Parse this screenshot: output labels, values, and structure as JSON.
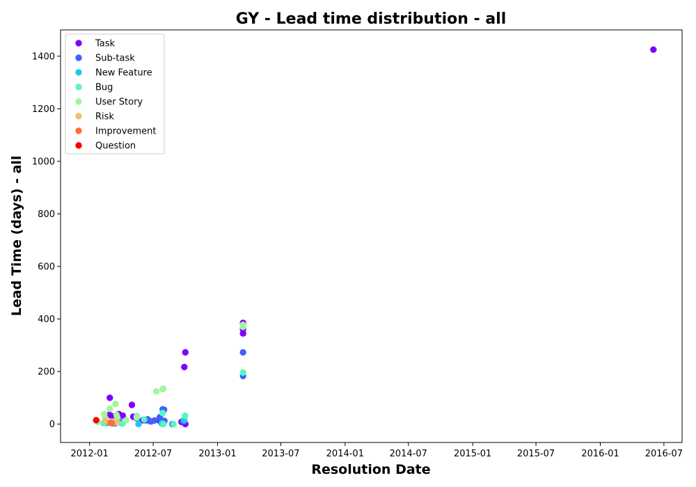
{
  "chart_data": {
    "type": "scatter",
    "title": "GY - Lead time distribution - all",
    "xlabel": "Resolution Date",
    "ylabel": "Lead Time (days) - all",
    "xlim": [
      "2011-10-10",
      "2016-08-22"
    ],
    "ylim": [
      -70,
      1500
    ],
    "x_ticks": [
      "2012-01",
      "2012-07",
      "2013-01",
      "2013-07",
      "2014-01",
      "2014-07",
      "2015-01",
      "2015-07",
      "2016-01",
      "2016-07"
    ],
    "y_ticks": [
      0,
      200,
      400,
      600,
      800,
      1000,
      1200,
      1400
    ],
    "grid": false,
    "legend_position": "upper-left",
    "series": [
      {
        "name": "Task",
        "color": "#8000ff",
        "points": [
          [
            "2012-02-28",
            100
          ],
          [
            "2012-02-27",
            35
          ],
          [
            "2012-03-05",
            30
          ],
          [
            "2012-03-20",
            30
          ],
          [
            "2012-03-25",
            38
          ],
          [
            "2012-04-05",
            32
          ],
          [
            "2012-05-01",
            73
          ],
          [
            "2012-05-05",
            28
          ],
          [
            "2012-06-01",
            15
          ],
          [
            "2012-06-15",
            18
          ],
          [
            "2012-07-20",
            12
          ],
          [
            "2012-09-28",
            217
          ],
          [
            "2012-10-01",
            273
          ],
          [
            "2012-10-01",
            0
          ],
          [
            "2012-09-20",
            8
          ],
          [
            "2013-03-15",
            385
          ],
          [
            "2013-03-15",
            360
          ],
          [
            "2013-03-15",
            345
          ],
          [
            "2016-06-01",
            1425
          ]
        ]
      },
      {
        "name": "Sub-task",
        "color": "#4062fa",
        "points": [
          [
            "2012-03-10",
            5
          ],
          [
            "2012-03-15",
            3
          ],
          [
            "2012-03-28",
            8
          ],
          [
            "2012-05-15",
            22
          ],
          [
            "2012-06-10",
            14
          ],
          [
            "2012-06-15",
            16
          ],
          [
            "2012-06-20",
            12
          ],
          [
            "2012-06-25",
            10
          ],
          [
            "2012-07-05",
            14
          ],
          [
            "2012-07-20",
            26
          ],
          [
            "2012-07-28",
            56
          ],
          [
            "2012-08-01",
            55
          ],
          [
            "2012-08-02",
            12
          ],
          [
            "2012-08-25",
            0
          ],
          [
            "2012-09-25",
            12
          ],
          [
            "2013-03-15",
            273
          ],
          [
            "2013-03-15",
            183
          ]
        ]
      },
      {
        "name": "New Feature",
        "color": "#1ccde5",
        "points": [
          [
            "2012-02-20",
            4
          ],
          [
            "2012-03-08",
            2
          ],
          [
            "2012-04-02",
            3
          ],
          [
            "2012-05-20",
            0
          ],
          [
            "2012-07-25",
            3
          ],
          [
            "2012-09-28",
            14
          ]
        ]
      },
      {
        "name": "Bug",
        "color": "#59f4c8",
        "points": [
          [
            "2012-02-10",
            3
          ],
          [
            "2012-03-10",
            8
          ],
          [
            "2012-04-05",
            2
          ],
          [
            "2012-05-15",
            30
          ],
          [
            "2012-06-05",
            18
          ],
          [
            "2012-07-28",
            42
          ],
          [
            "2012-07-30",
            0
          ],
          [
            "2012-08-28",
            0
          ],
          [
            "2012-09-30",
            32
          ],
          [
            "2013-03-15",
            196
          ]
        ]
      },
      {
        "name": "User Story",
        "color": "#a3f59e",
        "points": [
          [
            "2012-01-25",
            8
          ],
          [
            "2012-02-12",
            38
          ],
          [
            "2012-02-15",
            22
          ],
          [
            "2012-02-28",
            58
          ],
          [
            "2012-03-15",
            77
          ],
          [
            "2012-03-18",
            35
          ],
          [
            "2012-03-20",
            25
          ],
          [
            "2012-04-15",
            15
          ],
          [
            "2012-05-15",
            25
          ],
          [
            "2012-07-10",
            124
          ],
          [
            "2012-07-28",
            133
          ],
          [
            "2012-07-30",
            135
          ],
          [
            "2013-03-15",
            378
          ],
          [
            "2013-03-15",
            370
          ]
        ]
      },
      {
        "name": "Risk",
        "color": "#eebd76",
        "points": [
          [
            "2012-02-15",
            12
          ],
          [
            "2012-03-05",
            10
          ],
          [
            "2012-03-20",
            6
          ]
        ]
      },
      {
        "name": "Improvement",
        "color": "#ff6f3a",
        "points": [
          [
            "2012-03-01",
            5
          ],
          [
            "2012-03-05",
            3
          ]
        ]
      },
      {
        "name": "Question",
        "color": "#ff0000",
        "points": [
          [
            "2012-01-20",
            15
          ]
        ]
      }
    ]
  }
}
